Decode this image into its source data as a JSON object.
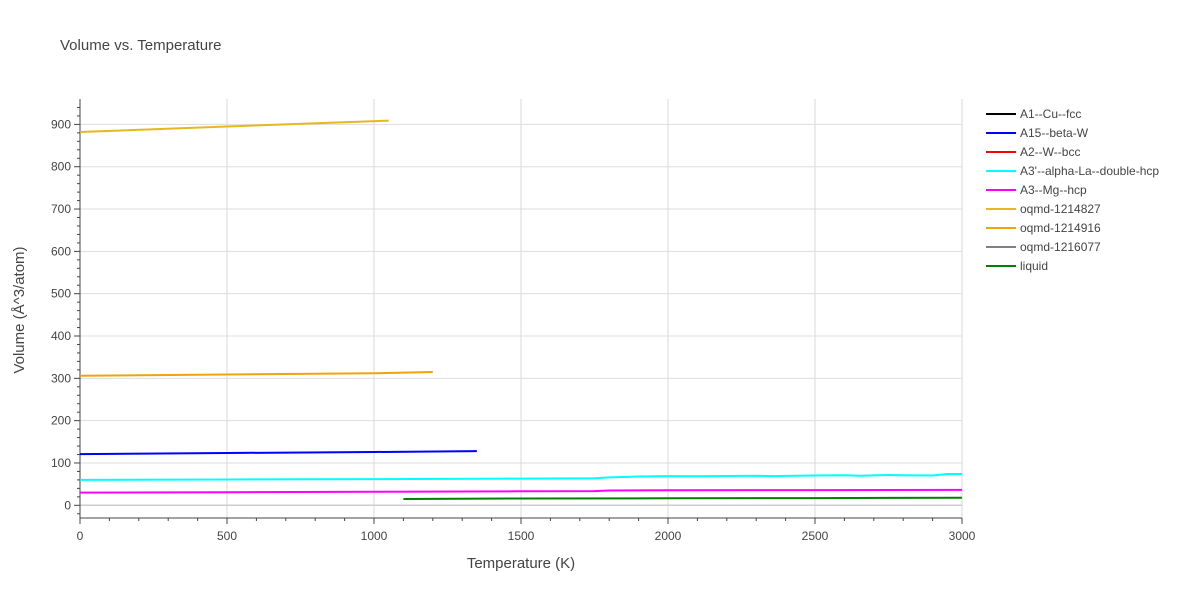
{
  "chart_data": {
    "type": "line",
    "title": "Volume vs. Temperature",
    "xlabel": "Temperature (K)",
    "ylabel": "Volume (Å^3/atom)",
    "xlim": [
      0,
      3000
    ],
    "ylim": [
      -30,
      960
    ],
    "x_ticks": [
      0,
      500,
      1000,
      1500,
      2000,
      2500,
      3000
    ],
    "x_tick_labels": [
      "0",
      "500",
      "1000",
      "1500",
      "2000",
      "2500",
      "3000"
    ],
    "y_ticks": [
      0,
      100,
      200,
      300,
      400,
      500,
      600,
      700,
      800,
      900
    ],
    "y_tick_labels": [
      "0",
      "100",
      "200",
      "300",
      "400",
      "500",
      "600",
      "700",
      "800",
      "900"
    ],
    "grid": true,
    "legend_position": "right",
    "series": [
      {
        "name": "A1--Cu--fcc",
        "color": "#000000",
        "x": [],
        "y": []
      },
      {
        "name": "A15--beta-W",
        "color": "#0000ff",
        "x": [
          0,
          500,
          1000,
          1350
        ],
        "y": [
          121,
          123.5,
          126,
          128
        ]
      },
      {
        "name": "A2--W--bcc",
        "color": "#ff0000",
        "x": [],
        "y": []
      },
      {
        "name": "A3'--alpha-La--double-hcp",
        "color": "#00ffff",
        "x": [
          0,
          500,
          1000,
          1500,
          1750,
          1800,
          1900,
          2000,
          2100,
          2300,
          2350,
          2500,
          2600,
          2650,
          2750,
          2800,
          2900,
          2950,
          3000
        ],
        "y": [
          60,
          61,
          62,
          63,
          64,
          66,
          68,
          69,
          68.5,
          70,
          69,
          70.5,
          71,
          70,
          71.5,
          71,
          70.5,
          74,
          74
        ]
      },
      {
        "name": "A3--Mg--hcp",
        "color": "#ff00ff",
        "x": [
          0,
          500,
          1000,
          1500,
          1750,
          1800,
          2000,
          2500,
          3000
        ],
        "y": [
          30,
          31,
          32,
          33,
          33.5,
          35,
          35.5,
          36,
          36.5
        ]
      },
      {
        "name": "oqmd-1214827",
        "color": "#e6b81e",
        "x": [
          0,
          500,
          1050
        ],
        "y": [
          882,
          895,
          909
        ]
      },
      {
        "name": "oqmd-1214916",
        "color": "#f0a30a",
        "x": [
          0,
          500,
          1000,
          1200
        ],
        "y": [
          306,
          309,
          312,
          315
        ]
      },
      {
        "name": "oqmd-1216077",
        "color": "#808080",
        "x": [],
        "y": []
      },
      {
        "name": "liquid",
        "color": "#008000",
        "x": [
          1100,
          1500,
          2000,
          2500,
          3000
        ],
        "y": [
          15,
          16,
          16.5,
          17,
          18
        ]
      }
    ]
  }
}
